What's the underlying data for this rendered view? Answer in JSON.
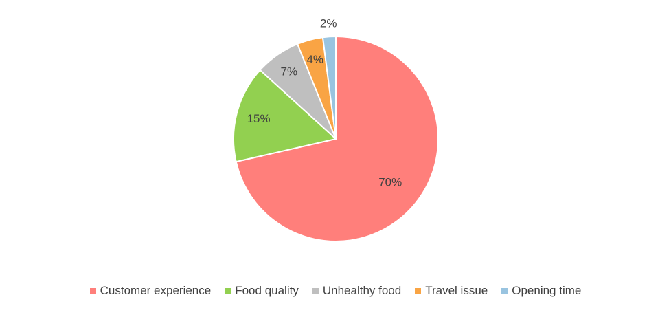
{
  "chart_data": {
    "type": "pie",
    "categories": [
      "Customer experience",
      "Food quality",
      "Unhealthy food",
      "Travel issue",
      "Opening time"
    ],
    "values": [
      70,
      15,
      7,
      4,
      2
    ],
    "labels": [
      "70%",
      "15%",
      "7%",
      "4%",
      "2%"
    ],
    "colors": [
      "#FF7F7B",
      "#92D050",
      "#BFBFBF",
      "#F9A444",
      "#99C4E0"
    ],
    "legend_position": "bottom",
    "start": "12 o'clock",
    "direction": "clockwise"
  }
}
